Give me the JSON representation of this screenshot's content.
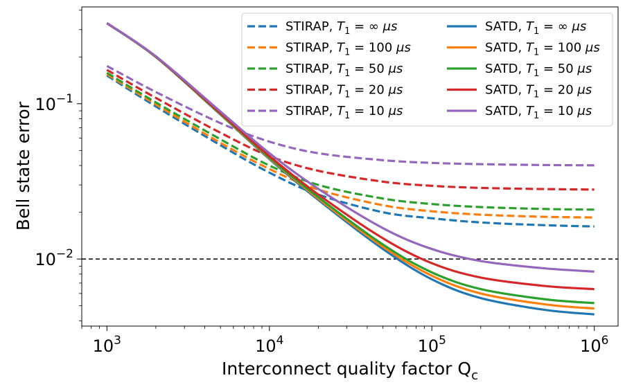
{
  "chart_data": {
    "type": "line",
    "xscale": "log",
    "yscale": "log",
    "xlim": [
      700,
      1400000
    ],
    "ylim": [
      0.0037,
      0.42
    ],
    "xlabel": "Interconnect quality factor Q",
    "xlabel_sub": "c",
    "ylabel": "Bell state error",
    "xticks": [
      {
        "value": 1000,
        "base": "10",
        "exp": "3"
      },
      {
        "value": 10000,
        "base": "10",
        "exp": "4"
      },
      {
        "value": 100000,
        "base": "10",
        "exp": "5"
      },
      {
        "value": 1000000,
        "base": "10",
        "exp": "6"
      }
    ],
    "yticks": [
      {
        "value": 0.01,
        "base": "10",
        "exp": "−2"
      },
      {
        "value": 0.1,
        "base": "10",
        "exp": "−1"
      }
    ],
    "threshold": {
      "value": 0.01,
      "style": "dashed",
      "color": "#000000"
    },
    "legend": {
      "placement": "top-right",
      "columns": 2
    },
    "x": [
      1000,
      2000,
      5000,
      10000,
      20000,
      50000,
      100000,
      200000,
      500000,
      1000000
    ],
    "series": [
      {
        "name": "STIRAP",
        "t1": "∞",
        "color": "#1f77b4",
        "style": "dashed",
        "values": [
          0.152,
          0.096,
          0.054,
          0.036,
          0.026,
          0.02,
          0.0183,
          0.0172,
          0.0165,
          0.0162
        ]
      },
      {
        "name": "STIRAP",
        "t1": "100",
        "color": "#ff7f0e",
        "style": "dashed",
        "values": [
          0.155,
          0.099,
          0.056,
          0.038,
          0.028,
          0.0222,
          0.0203,
          0.0193,
          0.0187,
          0.0185
        ]
      },
      {
        "name": "STIRAP",
        "t1": "50",
        "color": "#2ca02c",
        "style": "dashed",
        "values": [
          0.158,
          0.102,
          0.059,
          0.04,
          0.03,
          0.0245,
          0.0226,
          0.0216,
          0.021,
          0.0208
        ]
      },
      {
        "name": "STIRAP",
        "t1": "20",
        "color": "#d62728",
        "style": "dashed",
        "values": [
          0.165,
          0.109,
          0.065,
          0.046,
          0.037,
          0.0315,
          0.0296,
          0.0287,
          0.0282,
          0.028
        ]
      },
      {
        "name": "STIRAP",
        "t1": "10",
        "color": "#9467bd",
        "style": "dashed",
        "values": [
          0.175,
          0.119,
          0.075,
          0.057,
          0.048,
          0.0433,
          0.0416,
          0.0408,
          0.0403,
          0.0401
        ]
      },
      {
        "name": "SATD",
        "t1": "∞",
        "color": "#1f77b4",
        "style": "solid",
        "values": [
          0.33,
          0.2,
          0.085,
          0.044,
          0.024,
          0.0116,
          0.0074,
          0.0056,
          0.0047,
          0.0044
        ]
      },
      {
        "name": "SATD",
        "t1": "100",
        "color": "#ff7f0e",
        "style": "solid",
        "values": [
          0.33,
          0.2,
          0.0855,
          0.0445,
          0.0245,
          0.012,
          0.0078,
          0.006,
          0.0051,
          0.0048
        ]
      },
      {
        "name": "SATD",
        "t1": "50",
        "color": "#2ca02c",
        "style": "solid",
        "values": [
          0.33,
          0.2,
          0.086,
          0.045,
          0.025,
          0.0124,
          0.0082,
          0.0064,
          0.0055,
          0.0052
        ]
      },
      {
        "name": "SATD",
        "t1": "20",
        "color": "#d62728",
        "style": "solid",
        "values": [
          0.33,
          0.201,
          0.087,
          0.046,
          0.026,
          0.0136,
          0.0094,
          0.0076,
          0.0067,
          0.0064
        ]
      },
      {
        "name": "SATD",
        "t1": "10",
        "color": "#9467bd",
        "style": "solid",
        "values": [
          0.331,
          0.202,
          0.089,
          0.048,
          0.0283,
          0.0158,
          0.0116,
          0.0097,
          0.0087,
          0.0083
        ]
      }
    ]
  },
  "legend_entries": [
    {
      "name": "STIRAP",
      "sub": "1",
      "value": "∞",
      "unit": "μs"
    },
    {
      "name": "STIRAP",
      "sub": "1",
      "value": "100",
      "unit": "μs"
    },
    {
      "name": "STIRAP",
      "sub": "1",
      "value": "50",
      "unit": "μs"
    },
    {
      "name": "STIRAP",
      "sub": "1",
      "value": "20",
      "unit": "μs"
    },
    {
      "name": "STIRAP",
      "sub": "1",
      "value": "10",
      "unit": "μs"
    },
    {
      "name": "SATD",
      "sub": "1",
      "value": "∞",
      "unit": "μs"
    },
    {
      "name": "SATD",
      "sub": "1",
      "value": "100",
      "unit": "μs"
    },
    {
      "name": "SATD",
      "sub": "1",
      "value": "50",
      "unit": "μs"
    },
    {
      "name": "SATD",
      "sub": "1",
      "value": "20",
      "unit": "μs"
    },
    {
      "name": "SATD",
      "sub": "1",
      "value": "10",
      "unit": "μs"
    }
  ]
}
